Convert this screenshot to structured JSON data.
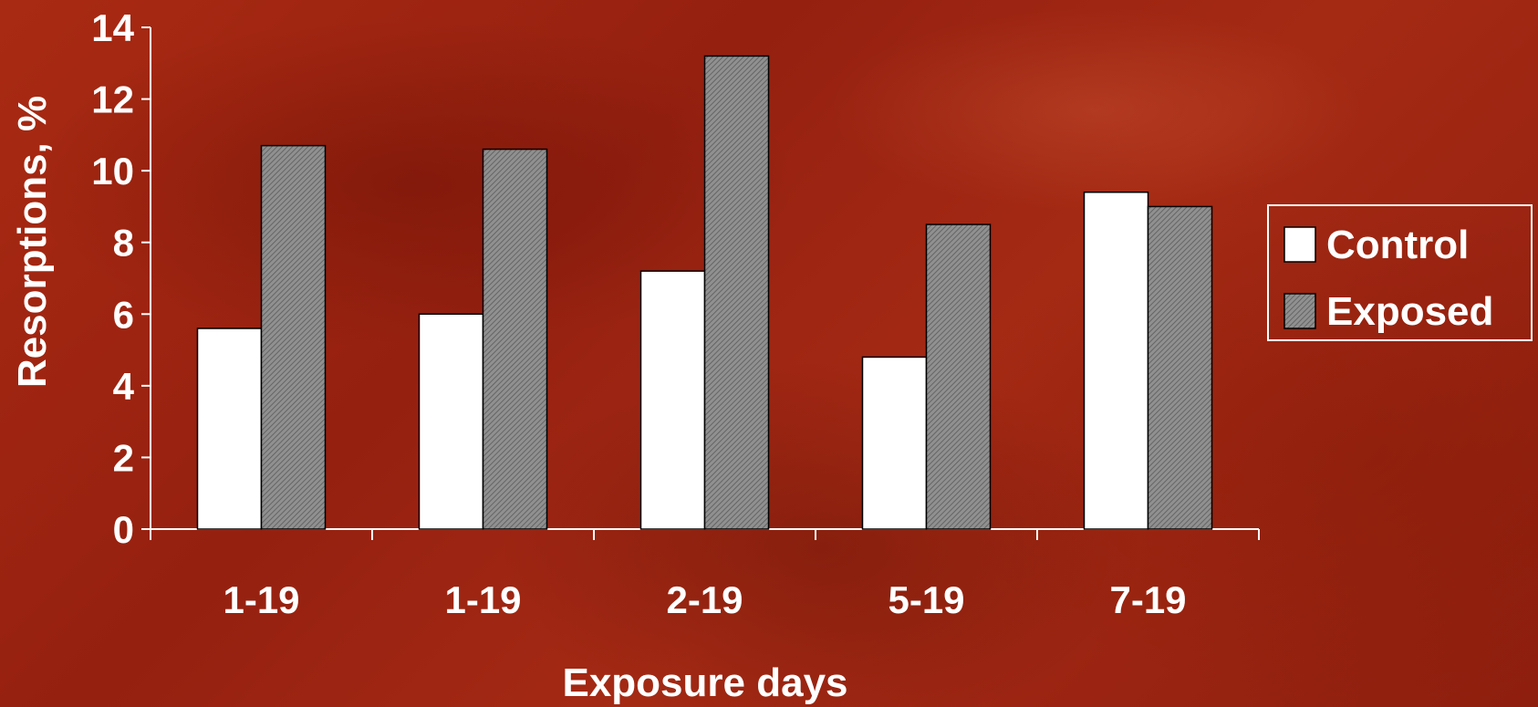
{
  "chart_data": {
    "type": "bar",
    "title": "",
    "xlabel": "Exposure days",
    "ylabel": "Resorptions, %",
    "categories": [
      "1-19",
      "1-19",
      "2-19",
      "5-19",
      "7-19"
    ],
    "series": [
      {
        "name": "Control",
        "values": [
          5.6,
          6.0,
          7.2,
          4.8,
          9.4
        ],
        "color": "#ffffff"
      },
      {
        "name": "Exposed",
        "values": [
          10.7,
          10.6,
          13.2,
          8.5,
          9.0
        ],
        "color": "#8c8c8c",
        "pattern": "hatched"
      }
    ],
    "ylim": [
      0,
      14
    ],
    "yticks": [
      "0",
      "2",
      "4",
      "6",
      "8",
      "10",
      "12",
      "14"
    ],
    "grid": false,
    "legend_position": "right"
  }
}
